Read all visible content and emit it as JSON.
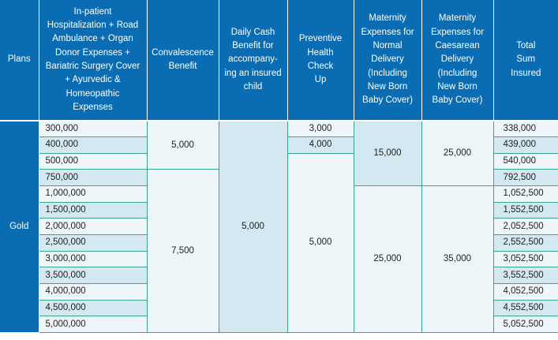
{
  "headers": {
    "plans": "Plans",
    "base": [
      "In-patient",
      "Hospitalization + Road",
      "Ambulance + Organ",
      "Donor Expenses +",
      "Bariatric Surgery Cover",
      "+ Ayurvedic &",
      "Homeopathic",
      "Expenses"
    ],
    "convalescence": [
      "Convalescence",
      "Benefit"
    ],
    "daily_cash": [
      "Daily Cash",
      "Benefit for",
      "accompany-",
      "ing an insured",
      "child"
    ],
    "checkup": [
      "Preventive",
      "Health",
      "Check",
      "Up"
    ],
    "normal": [
      "Maternity",
      "Expenses for",
      "Normal",
      "Delivery",
      "(Including",
      "New Born",
      "Baby Cover)"
    ],
    "caesarean": [
      "Maternity",
      "Expenses for",
      "Caesarean",
      "Delivery",
      "(Including",
      "New Born",
      "Baby Cover)"
    ],
    "total": [
      "Total",
      "Sum",
      "Insured"
    ]
  },
  "plan_name": "Gold",
  "base_sums": [
    "300,000",
    "400,000",
    "500,000",
    "750,000",
    "1,000,000",
    "1,500,000",
    "2,000,000",
    "2,500,000",
    "3,000,000",
    "3,500,000",
    "4,000,000",
    "4,500,000",
    "5,000,000"
  ],
  "totals": [
    "338,000",
    "439,000",
    "540,000",
    "792,500",
    "1,052,500",
    "1,552,500",
    "2,052,500",
    "2,552,500",
    "3,052,500",
    "3,552,500",
    "4,052,500",
    "4,552,500",
    "5,052,500"
  ],
  "convalescence": [
    "5,000",
    "7,500"
  ],
  "daily_cash": "5,000",
  "checkup": [
    "3,000",
    "4,000",
    "5,000"
  ],
  "normal_delivery": [
    "15,000",
    "25,000"
  ],
  "caesarean_delivery": [
    "25,000",
    "35,000"
  ],
  "colors": {
    "header_bg": "#0a6db4",
    "cell_bg": "#d3e8f1",
    "cell_light_bg": "#eef6fa",
    "border_green": "#3aa58a"
  }
}
